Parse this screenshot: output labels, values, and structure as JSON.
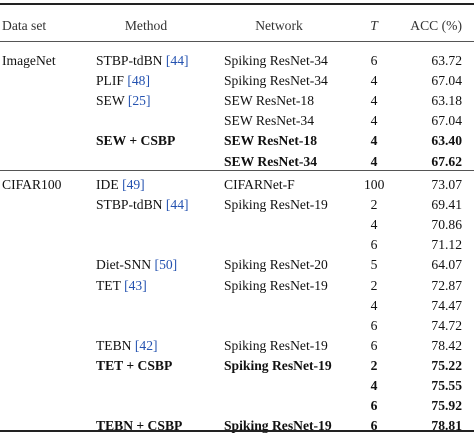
{
  "headers": {
    "dataset": "Data set",
    "method": "Method",
    "network": "Network",
    "t": "T",
    "acc": "ACC (%)"
  },
  "groups": [
    {
      "dataset": "ImageNet",
      "rows": [
        {
          "method": "STBP-tdBN",
          "ref": "[44]",
          "network": "Spiking ResNet-34",
          "t": "6",
          "acc": "63.72",
          "bold": false
        },
        {
          "method": "PLIF",
          "ref": "[48]",
          "network": "Spiking ResNet-34",
          "t": "4",
          "acc": "67.04",
          "bold": false
        },
        {
          "method": "SEW",
          "ref": "[25]",
          "network": "SEW ResNet-18",
          "t": "4",
          "acc": "63.18",
          "bold": false
        },
        {
          "method": "",
          "ref": "",
          "network": "SEW ResNet-34",
          "t": "4",
          "acc": "67.04",
          "bold": false
        },
        {
          "method": "SEW + CSBP",
          "ref": "",
          "network": "SEW ResNet-18",
          "t": "4",
          "acc": "63.40",
          "bold": true
        },
        {
          "method": "",
          "ref": "",
          "network": "SEW ResNet-34",
          "t": "4",
          "acc": "67.62",
          "bold": true
        }
      ]
    },
    {
      "dataset": "CIFAR100",
      "rows": [
        {
          "method": "IDE",
          "ref": "[49]",
          "network": "CIFARNet-F",
          "t": "100",
          "acc": "73.07",
          "bold": false
        },
        {
          "method": "STBP-tdBN",
          "ref": "[44]",
          "network": "Spiking ResNet-19",
          "t": "2",
          "acc": "69.41",
          "bold": false
        },
        {
          "method": "",
          "ref": "",
          "network": "",
          "t": "4",
          "acc": "70.86",
          "bold": false
        },
        {
          "method": "",
          "ref": "",
          "network": "",
          "t": "6",
          "acc": "71.12",
          "bold": false
        },
        {
          "method": "Diet-SNN",
          "ref": "[50]",
          "network": "Spiking ResNet-20",
          "t": "5",
          "acc": "64.07",
          "bold": false
        },
        {
          "method": "TET",
          "ref": "[43]",
          "network": "Spiking ResNet-19",
          "t": "2",
          "acc": "72.87",
          "bold": false
        },
        {
          "method": "",
          "ref": "",
          "network": "",
          "t": "4",
          "acc": "74.47",
          "bold": false
        },
        {
          "method": "",
          "ref": "",
          "network": "",
          "t": "6",
          "acc": "74.72",
          "bold": false
        },
        {
          "method": "TEBN",
          "ref": "[42]",
          "network": "Spiking ResNet-19",
          "t": "6",
          "acc": "78.42",
          "bold": false
        },
        {
          "method": "TET + CSBP",
          "ref": "",
          "network": "Spiking ResNet-19",
          "t": "2",
          "acc": "75.22",
          "bold": true
        },
        {
          "method": "",
          "ref": "",
          "network": "",
          "t": "4",
          "acc": "75.55",
          "bold": true
        },
        {
          "method": "",
          "ref": "",
          "network": "",
          "t": "6",
          "acc": "75.92",
          "bold": true
        },
        {
          "method": "TEBN + CSBP",
          "ref": "",
          "network": "Spiking ResNet-19",
          "t": "6",
          "acc": "78.81",
          "bold": true
        }
      ]
    }
  ]
}
